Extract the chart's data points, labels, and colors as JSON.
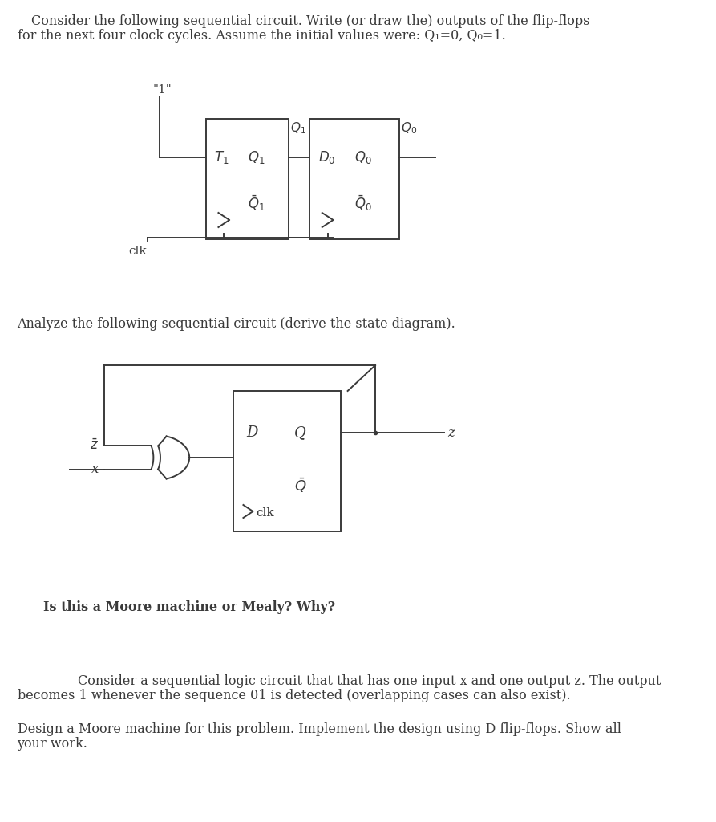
{
  "bg_color": "#ffffff",
  "lc": "#3a3a3a",
  "title1_line1": "Consider the following sequential circuit. Write (or draw the) outputs of the flip-flops",
  "title1_line2": "for the next four clock cycles. Assume the initial values were: Q₁=0, Q₀=1.",
  "title2": "Analyze the following sequential circuit (derive the state diagram).",
  "title3_line1": "Consider a sequential logic circuit that that has one input x and one output z. The output",
  "title3_line2": "becomes 1 whenever the sequence 01 is detected (overlapping cases can also exist).",
  "title4_line1": "Design a Moore machine for this problem. Implement the design using D flip-flops. Show all",
  "title4_line2": "your work.",
  "moore_mealy": "Is this a Moore machine or Mealy? Why?"
}
